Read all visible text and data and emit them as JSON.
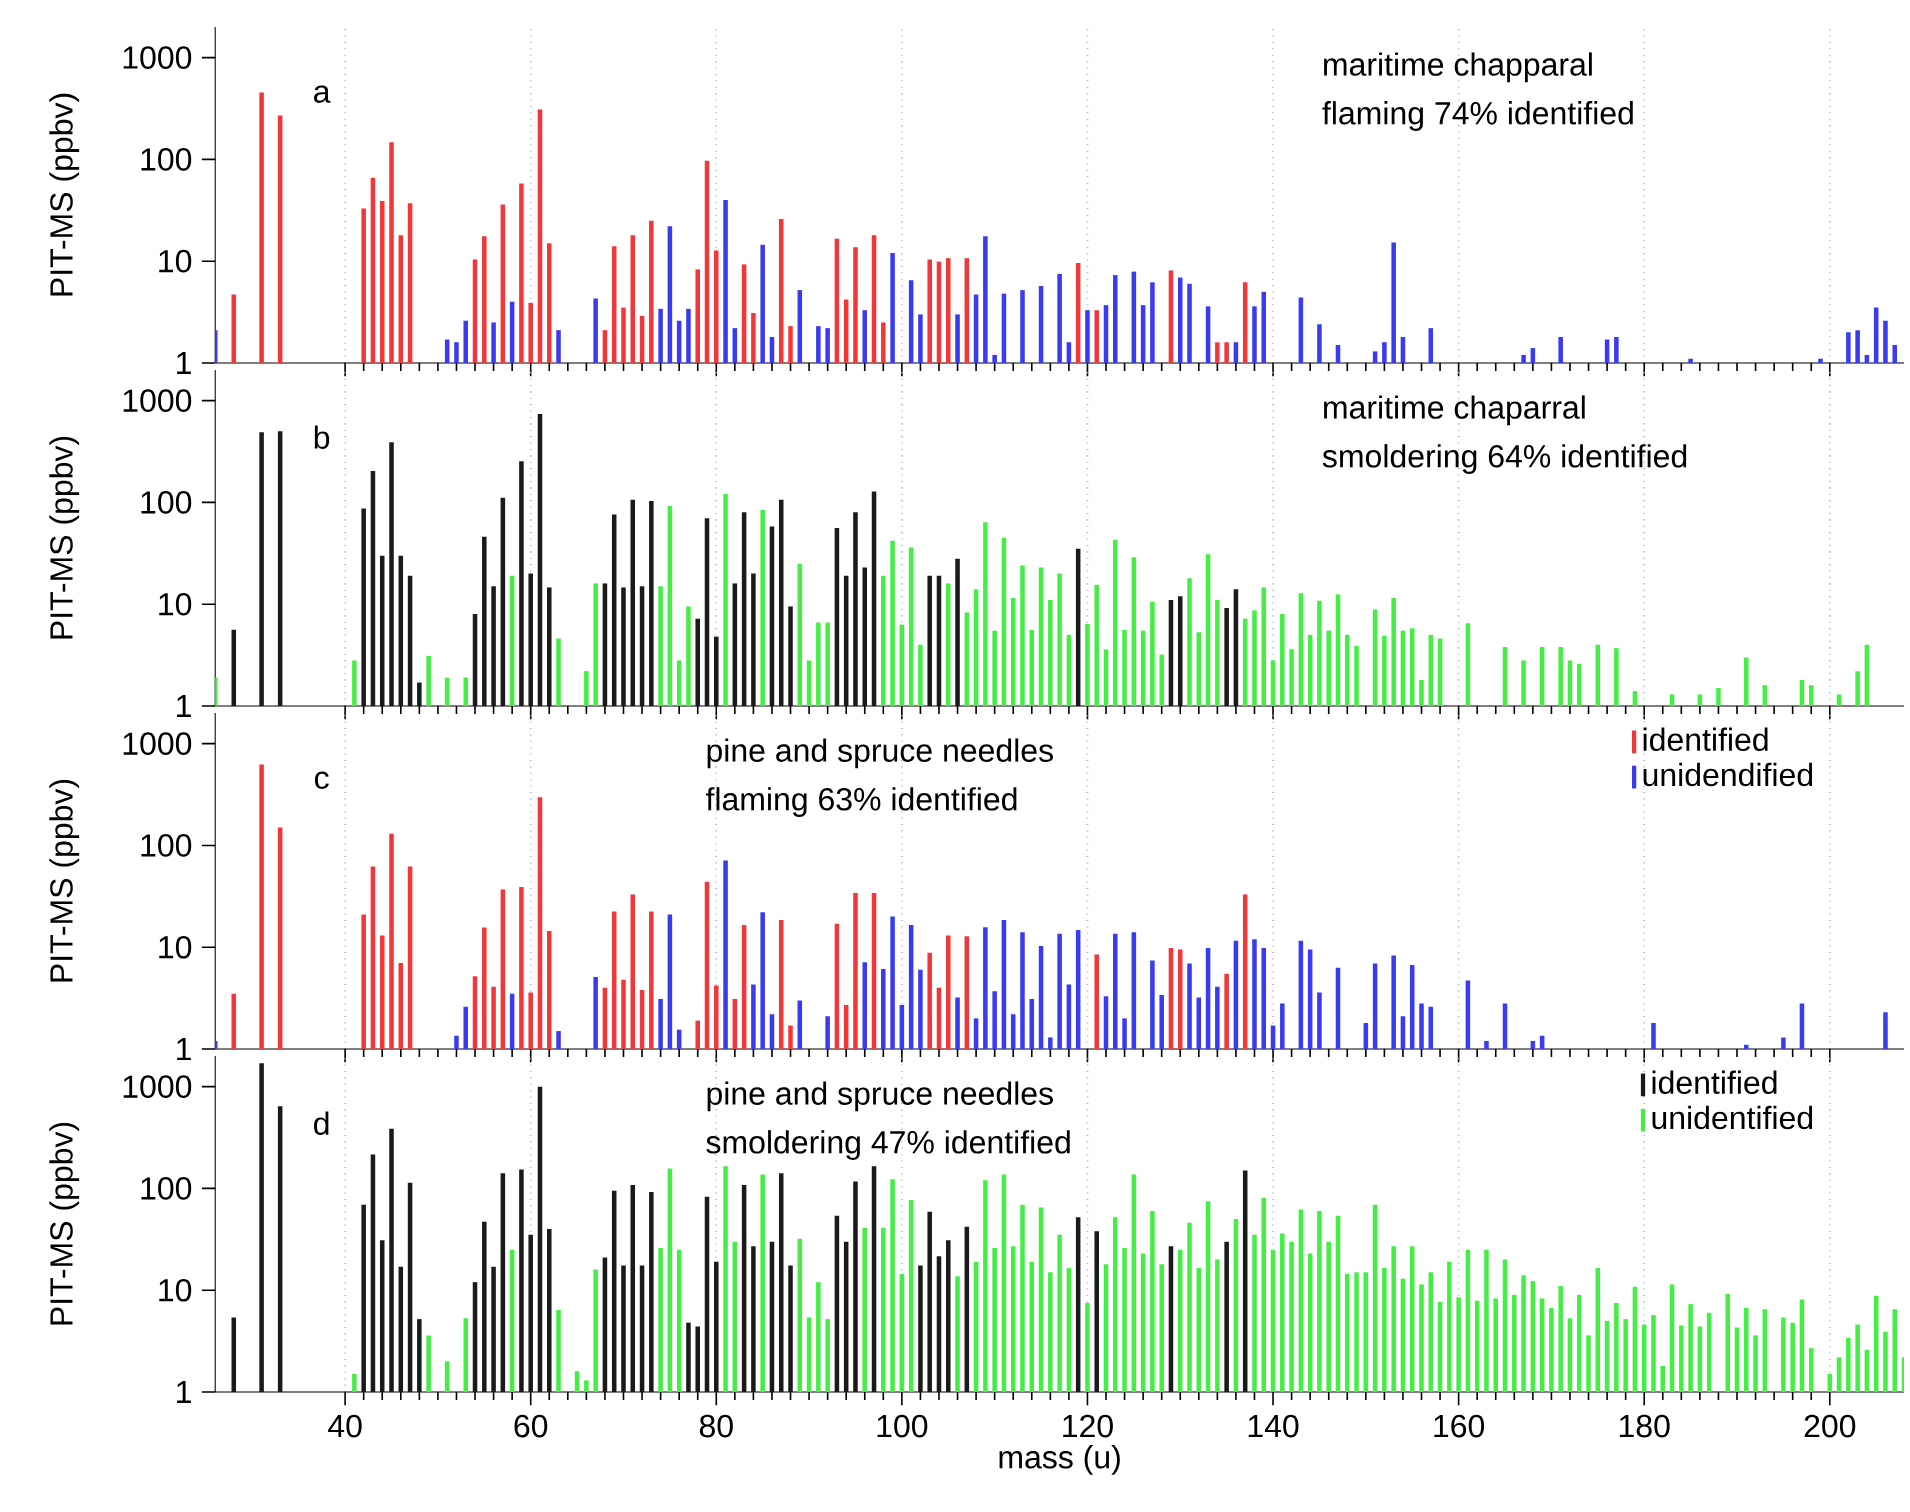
{
  "chart_data": [
    {
      "type": "bar",
      "ylabel": "PIT-MS (ppbv)",
      "annotations": [
        "a",
        "maritime chapparal",
        "flaming 74% identified"
      ],
      "xlim": [
        26,
        208
      ],
      "xticks": [
        40,
        60,
        80,
        100,
        120,
        140,
        160,
        180,
        200
      ],
      "ylim": [
        1,
        2000
      ],
      "yticks": [
        1,
        10,
        100,
        1000
      ],
      "log": true,
      "grid": "x",
      "tick_labels": "y",
      "series": [
        {
          "color": "#f2373a",
          "x": [
            28,
            31,
            33,
            42,
            43,
            44,
            45,
            46,
            47,
            54,
            55,
            57,
            59,
            60,
            61,
            62,
            68,
            69,
            70,
            71,
            72,
            73,
            78,
            79,
            80,
            83,
            84,
            87,
            88,
            93,
            94,
            95,
            97,
            98,
            103,
            104,
            105,
            107,
            119,
            121,
            129,
            134,
            135,
            137
          ],
          "values": [
            4.7,
            455,
            270,
            33,
            66,
            39,
            147,
            18,
            37,
            10.4,
            17.6,
            36,
            58,
            3.9,
            310,
            15,
            2.1,
            14,
            3.5,
            18,
            2.9,
            25,
            8.3,
            97,
            12.7,
            9.3,
            3.1,
            26,
            2.3,
            16.6,
            4.2,
            13.7,
            18,
            2.5,
            10.4,
            9.9,
            10.7,
            10.7,
            9.6,
            3.3,
            8.1,
            1.6,
            1.6,
            6.2
          ]
        },
        {
          "color": "#3a3af0",
          "x": [
            26,
            51,
            52,
            53,
            56,
            58,
            63,
            67,
            74,
            75,
            76,
            77,
            81,
            82,
            85,
            86,
            89,
            91,
            92,
            96,
            99,
            101,
            102,
            106,
            108,
            109,
            110,
            111,
            113,
            115,
            117,
            118,
            120,
            122,
            123,
            125,
            126,
            127,
            130,
            131,
            133,
            136,
            138,
            139,
            143,
            145,
            147,
            151,
            152,
            153,
            154,
            157,
            167,
            168,
            171,
            176,
            177,
            185,
            199,
            202,
            203,
            204,
            205,
            206,
            207
          ],
          "values": [
            2.1,
            1.7,
            1.6,
            2.6,
            2.5,
            4,
            2.1,
            4.3,
            3.4,
            22,
            2.6,
            3.4,
            40,
            2.2,
            14.5,
            1.8,
            5.2,
            2.3,
            2.2,
            3.3,
            12,
            6.5,
            3.0,
            3.0,
            4.7,
            17.6,
            1.2,
            4.8,
            5.2,
            5.7,
            7.5,
            1.6,
            3.3,
            3.7,
            7.3,
            7.9,
            3.7,
            6.2,
            6.9,
            6.0,
            3.6,
            1.6,
            3.6,
            5.0,
            4.4,
            2.4,
            1.5,
            1.3,
            1.6,
            15.3,
            1.8,
            2.2,
            1.2,
            1.4,
            1.8,
            1.7,
            1.8,
            1.1,
            1.1,
            2.0,
            2.1,
            1.2,
            3.5,
            2.6,
            1.5
          ]
        }
      ]
    },
    {
      "type": "bar",
      "ylabel": "PIT-MS (ppbv)",
      "annotations": [
        "b",
        "maritime chaparral",
        "smoldering 64% identified"
      ],
      "xlim": [
        26,
        208
      ],
      "xticks": [
        40,
        60,
        80,
        100,
        120,
        140,
        160,
        180,
        200
      ],
      "ylim": [
        1,
        2000
      ],
      "yticks": [
        1,
        10,
        100,
        1000
      ],
      "log": true,
      "grid": "x",
      "tick_labels": "y",
      "series": [
        {
          "color": "#1a1a1a",
          "x": [
            28,
            31,
            33,
            42,
            43,
            44,
            45,
            46,
            47,
            48,
            54,
            55,
            56,
            57,
            59,
            60,
            61,
            62,
            68,
            69,
            70,
            71,
            72,
            73,
            78,
            79,
            80,
            82,
            83,
            84,
            86,
            87,
            88,
            93,
            94,
            95,
            96,
            97,
            103,
            104,
            106,
            119,
            129,
            130,
            135,
            136
          ],
          "values": [
            5.6,
            490,
            500,
            87,
            204,
            30,
            390,
            30,
            19,
            1.7,
            8.0,
            46,
            15,
            111,
            254,
            20,
            740,
            14.6,
            16,
            76,
            14.6,
            106,
            15,
            103,
            7.2,
            70,
            4.8,
            16,
            80,
            20,
            58,
            106,
            9.5,
            56,
            19,
            80,
            23,
            128,
            19,
            19,
            28,
            35,
            11,
            12,
            9.2,
            14
          ]
        },
        {
          "color": "#44ee44",
          "x": [
            26,
            41,
            49,
            51,
            53,
            58,
            63,
            66,
            67,
            74,
            75,
            76,
            77,
            81,
            85,
            89,
            90,
            91,
            92,
            98,
            99,
            100,
            101,
            102,
            105,
            107,
            108,
            109,
            110,
            111,
            112,
            113,
            114,
            115,
            116,
            117,
            118,
            120,
            121,
            122,
            123,
            124,
            125,
            126,
            127,
            128,
            131,
            132,
            133,
            134,
            137,
            138,
            139,
            140,
            141,
            142,
            143,
            144,
            145,
            146,
            147,
            148,
            149,
            151,
            152,
            153,
            154,
            155,
            156,
            157,
            158,
            161,
            165,
            167,
            169,
            171,
            172,
            173,
            175,
            177,
            179,
            183,
            186,
            188,
            191,
            193,
            197,
            198,
            201,
            203,
            204
          ],
          "values": [
            1.9,
            2.8,
            3.1,
            1.9,
            1.9,
            19,
            4.6,
            2.2,
            16,
            15,
            92,
            2.8,
            9.5,
            121,
            84,
            25,
            2.8,
            6.6,
            6.6,
            19,
            42,
            6.3,
            36,
            4.0,
            16,
            8.3,
            14,
            64,
            5.5,
            45,
            11.5,
            24,
            5.6,
            23,
            11,
            20,
            5.0,
            6.4,
            15.5,
            3.6,
            43,
            5.6,
            29,
            5.5,
            10.6,
            3.2,
            18,
            5.3,
            31,
            11,
            7.2,
            8.7,
            14.6,
            2.8,
            8.0,
            3.6,
            12.8,
            5,
            10.8,
            5.5,
            12.5,
            5.0,
            3.9,
            8.9,
            4.9,
            11.5,
            5.5,
            5.8,
            1.8,
            5.0,
            4.6,
            6.5,
            3.8,
            2.8,
            3.8,
            3.8,
            2.8,
            2.6,
            4,
            3.7,
            1.4,
            1.3,
            1.3,
            1.5,
            3.0,
            1.6,
            1.8,
            1.6,
            1.3,
            2.2,
            4.0
          ]
        }
      ]
    },
    {
      "type": "bar",
      "ylabel": "PIT-MS (ppbv)",
      "annotations": [
        "c",
        "pine and spruce needles",
        "flaming 63% identified"
      ],
      "xlim": [
        26,
        208
      ],
      "xticks": [
        40,
        60,
        80,
        100,
        120,
        140,
        160,
        180,
        200
      ],
      "ylim": [
        1,
        2000
      ],
      "yticks": [
        1,
        10,
        100,
        1000
      ],
      "log": true,
      "grid": "x",
      "tick_labels": "y",
      "legend": "top right",
      "series": [
        {
          "name": "identified",
          "color": "#f2373a",
          "x": [
            28,
            31,
            33,
            42,
            43,
            44,
            45,
            46,
            47,
            54,
            55,
            56,
            57,
            59,
            60,
            61,
            62,
            68,
            69,
            70,
            71,
            72,
            73,
            78,
            79,
            80,
            82,
            83,
            87,
            88,
            93,
            94,
            95,
            97,
            103,
            104,
            105,
            107,
            121,
            129,
            130,
            135,
            137
          ],
          "values": [
            3.5,
            625,
            150,
            21,
            62,
            13,
            130,
            7,
            62,
            5.2,
            15.6,
            4.1,
            37,
            39,
            3.6,
            297,
            14.4,
            4.0,
            22.4,
            4.8,
            33,
            3.8,
            22.4,
            1.9,
            44,
            4.2,
            3.1,
            16.5,
            18.5,
            1.7,
            17,
            2.7,
            34,
            34,
            8.8,
            4.0,
            13,
            12.8,
            8.5,
            9.8,
            9.5,
            5.5,
            33
          ]
        },
        {
          "name": "unidendified",
          "color": "#3a3af0",
          "x": [
            26,
            52,
            53,
            58,
            63,
            67,
            74,
            75,
            76,
            81,
            84,
            85,
            86,
            89,
            92,
            96,
            98,
            99,
            100,
            101,
            102,
            106,
            108,
            109,
            110,
            111,
            112,
            113,
            114,
            115,
            116,
            117,
            118,
            119,
            122,
            123,
            124,
            125,
            127,
            128,
            131,
            132,
            133,
            134,
            136,
            138,
            139,
            140,
            141,
            143,
            144,
            145,
            147,
            150,
            151,
            153,
            154,
            155,
            156,
            157,
            161,
            163,
            165,
            168,
            169,
            181,
            191,
            195,
            197,
            206
          ],
          "values": [
            1.2,
            1.35,
            2.6,
            3.5,
            1.5,
            5.1,
            3.1,
            21,
            1.55,
            71,
            4.3,
            22,
            2.2,
            3.0,
            2.1,
            7.1,
            6.1,
            20,
            2.7,
            16.5,
            6.0,
            3.2,
            2.0,
            15.7,
            3.7,
            18.5,
            2.2,
            14,
            3.1,
            10.3,
            1.3,
            13.6,
            4.3,
            14.8,
            3.3,
            13.6,
            2.0,
            14,
            7.4,
            3.4,
            6.9,
            3.2,
            9.8,
            4.1,
            11.6,
            12,
            9.8,
            1.7,
            2.8,
            11.6,
            9.5,
            3.6,
            6.3,
            1.8,
            6.9,
            8.3,
            2.1,
            6.7,
            2.8,
            2.6,
            4.7,
            1.2,
            2.8,
            1.2,
            1.35,
            1.8,
            1.1,
            1.3,
            2.8,
            2.3
          ]
        }
      ]
    },
    {
      "type": "bar",
      "ylabel": "PIT-MS (ppbv)",
      "xlabel": "mass (u)",
      "annotations": [
        "d",
        "pine and spruce needles",
        "smoldering 47% identified"
      ],
      "xlim": [
        26,
        208
      ],
      "xticks": [
        40,
        60,
        80,
        100,
        120,
        140,
        160,
        180,
        200
      ],
      "ylim": [
        1,
        2000
      ],
      "yticks": [
        1,
        10,
        100,
        1000
      ],
      "log": true,
      "grid": "x",
      "legend": "top right",
      "series": [
        {
          "name": "identified",
          "color": "#1a1a1a",
          "x": [
            28,
            31,
            33,
            42,
            43,
            44,
            45,
            46,
            47,
            48,
            54,
            55,
            56,
            57,
            59,
            60,
            61,
            62,
            68,
            69,
            70,
            71,
            72,
            73,
            77,
            78,
            79,
            80,
            83,
            84,
            86,
            87,
            88,
            93,
            94,
            95,
            97,
            102,
            103,
            104,
            105,
            107,
            119,
            121,
            129,
            135,
            137
          ],
          "values": [
            5.4,
            1700,
            640,
            69,
            215,
            31,
            385,
            17,
            114,
            5.2,
            12,
            47,
            17,
            141,
            153,
            35,
            1000,
            40,
            21,
            95,
            17.5,
            108,
            17.5,
            92,
            4.8,
            4.4,
            83,
            19,
            108,
            27,
            30,
            141,
            17.5,
            54,
            30,
            117,
            165,
            17.5,
            59,
            21.5,
            31,
            42,
            52,
            38,
            27,
            30,
            150
          ]
        },
        {
          "name": "unidentified",
          "color": "#44ee44",
          "x": [
            41,
            49,
            51,
            53,
            58,
            63,
            65,
            66,
            67,
            74,
            75,
            76,
            81,
            82,
            85,
            89,
            90,
            91,
            92,
            96,
            98,
            99,
            100,
            101,
            106,
            108,
            109,
            110,
            111,
            112,
            113,
            114,
            115,
            116,
            117,
            118,
            120,
            122,
            123,
            124,
            125,
            126,
            127,
            128,
            130,
            131,
            132,
            133,
            134,
            136,
            138,
            139,
            140,
            141,
            142,
            143,
            144,
            145,
            146,
            147,
            148,
            149,
            150,
            151,
            152,
            153,
            154,
            155,
            156,
            157,
            158,
            159,
            160,
            161,
            162,
            163,
            164,
            165,
            166,
            167,
            168,
            169,
            170,
            171,
            172,
            173,
            174,
            175,
            176,
            177,
            178,
            179,
            180,
            181,
            182,
            183,
            184,
            185,
            186,
            187,
            189,
            190,
            191,
            192,
            193,
            195,
            196,
            197,
            198,
            200,
            201,
            202,
            203,
            204,
            205,
            206,
            207,
            208
          ],
          "values": [
            1.5,
            3.6,
            2.0,
            5.3,
            25,
            6.4,
            1.6,
            1.3,
            16,
            26,
            157,
            25,
            165,
            30,
            137,
            32,
            5.4,
            12,
            5.2,
            41,
            41,
            123,
            14.5,
            77,
            13.7,
            19,
            120,
            26,
            137,
            27,
            69,
            19,
            65,
            15,
            35,
            16.5,
            7.5,
            18,
            52,
            26,
            137,
            23,
            60,
            18,
            25,
            46,
            16.5,
            75,
            20,
            50,
            35,
            81,
            25,
            36,
            30,
            62,
            23,
            60,
            30,
            54,
            14.5,
            15,
            15,
            69,
            16.5,
            27,
            13,
            27,
            11.4,
            15,
            7.7,
            19,
            8.5,
            25,
            7.9,
            25,
            8.3,
            20,
            9.0,
            14,
            12.3,
            8.3,
            6.7,
            11,
            5.3,
            9.0,
            3.6,
            16.5,
            5.0,
            7.5,
            5.2,
            10.8,
            4.6,
            5.7,
            1.8,
            11.4,
            4.5,
            7.3,
            4.4,
            6.0,
            9.2,
            4.3,
            6.7,
            3.6,
            6.5,
            5.4,
            4.8,
            8.1,
            2.7,
            1.5,
            2.2,
            3.4,
            4.6,
            2.6,
            8.8,
            3.9,
            6.5,
            2.2
          ]
        }
      ]
    }
  ]
}
